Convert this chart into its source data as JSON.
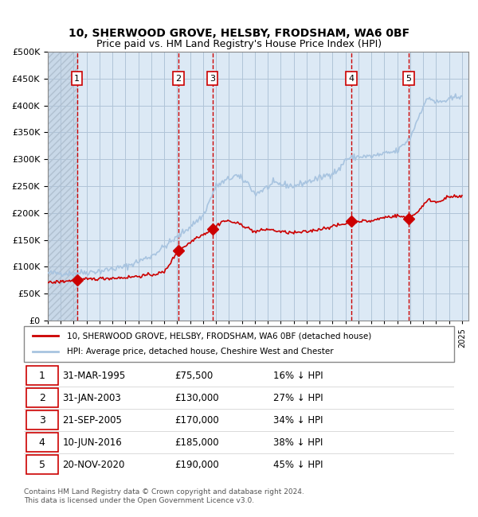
{
  "title_line1": "10, SHERWOOD GROVE, HELSBY, FRODSHAM, WA6 0BF",
  "title_line2": "Price paid vs. HM Land Registry's House Price Index (HPI)",
  "ylabel": "",
  "hpi_color": "#a8c4e0",
  "price_color": "#cc0000",
  "background_color": "#dce9f5",
  "hatch_color": "#c0cfe0",
  "grid_color": "#b0c4d8",
  "vline_color": "#cc0000",
  "sale_marker_color": "#cc0000",
  "transactions": [
    {
      "label": "1",
      "date_x": 1995.25,
      "price": 75500
    },
    {
      "label": "2",
      "date_x": 2003.08,
      "price": 130000
    },
    {
      "label": "3",
      "date_x": 2005.72,
      "price": 170000
    },
    {
      "label": "4",
      "date_x": 2016.44,
      "price": 185000
    },
    {
      "label": "5",
      "date_x": 2020.89,
      "price": 190000
    }
  ],
  "legend_entries": [
    "10, SHERWOOD GROVE, HELSBY, FRODSHAM, WA6 0BF (detached house)",
    "HPI: Average price, detached house, Cheshire West and Chester"
  ],
  "table_rows": [
    [
      "1",
      "31-MAR-1995",
      "£75,500",
      "16% ↓ HPI"
    ],
    [
      "2",
      "31-JAN-2003",
      "£130,000",
      "27% ↓ HPI"
    ],
    [
      "3",
      "21-SEP-2005",
      "£170,000",
      "34% ↓ HPI"
    ],
    [
      "4",
      "10-JUN-2016",
      "£185,000",
      "38% ↓ HPI"
    ],
    [
      "5",
      "20-NOV-2020",
      "£190,000",
      "45% ↓ HPI"
    ]
  ],
  "footer": "Contains HM Land Registry data © Crown copyright and database right 2024.\nThis data is licensed under the Open Government Licence v3.0.",
  "ylim": [
    0,
    500000
  ],
  "xlim_start": 1993.0,
  "xlim_end": 2025.5
}
